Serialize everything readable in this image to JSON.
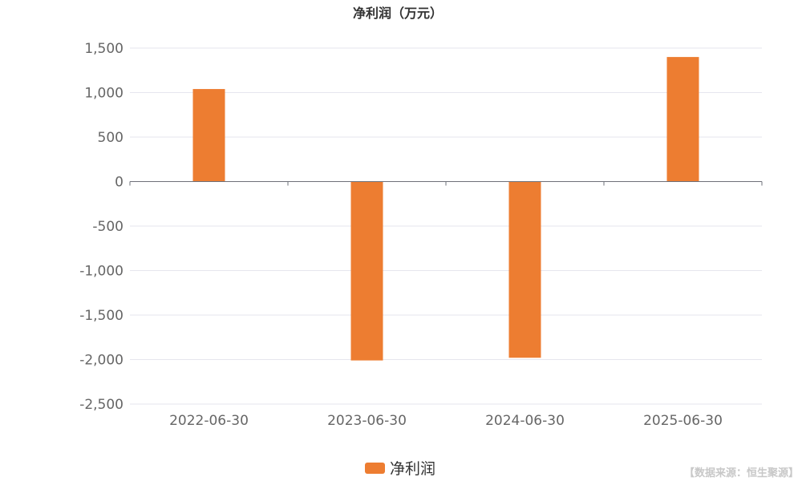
{
  "chart_data": {
    "type": "bar",
    "title": "净利润（万元）",
    "categories": [
      "2022-06-30",
      "2023-06-30",
      "2024-06-30",
      "2025-06-30"
    ],
    "series": [
      {
        "name": "净利润",
        "values": [
          1040,
          -2010,
          -1980,
          1400
        ],
        "color": "#ed7d31"
      }
    ],
    "ylim": [
      -2500,
      1500
    ],
    "yticks": [
      1500,
      1000,
      500,
      0,
      -500,
      -1000,
      -1500,
      -2000,
      -2500
    ],
    "ytick_labels": [
      "1,500",
      "1,000",
      "500",
      "0",
      "-500",
      "-1,000",
      "-1,500",
      "-2,000",
      "-2,500"
    ],
    "grid": true,
    "legend_position": "bottom-center"
  },
  "source_note": "【数据来源：恒生聚源】"
}
